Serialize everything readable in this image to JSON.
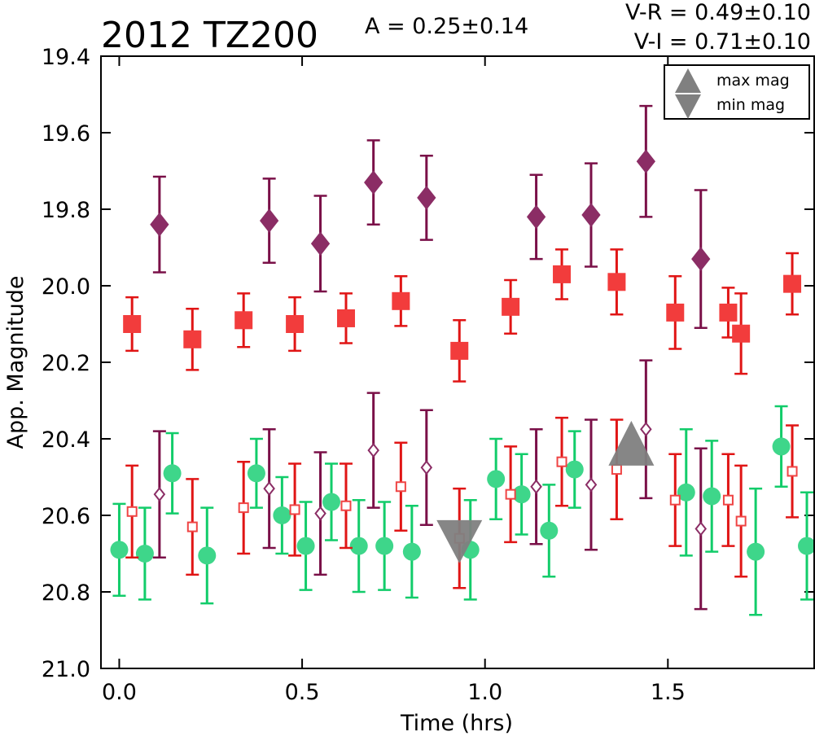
{
  "chart_data": {
    "type": "scatter",
    "title": "2012 TZ200",
    "amplitude_label": "A  = 0.25±0.14",
    "colors_label_1": "V-R = 0.49±0.10",
    "colors_label_2": "V-I  = 0.71±0.10",
    "xlabel": "Time (hrs)",
    "ylabel": "App. Magnitude",
    "xlim": [
      -0.05,
      1.9
    ],
    "ylim": [
      21.0,
      19.4
    ],
    "y_inverted": true,
    "xticks": [
      "0.0",
      "0.5",
      "1.0",
      "1.5"
    ],
    "yticks": [
      "19.4",
      "19.6",
      "19.8",
      "20.0",
      "20.2",
      "20.4",
      "20.6",
      "20.8",
      "21.0"
    ],
    "xtick_values": [
      0.0,
      0.5,
      1.0,
      1.5
    ],
    "ytick_values": [
      19.4,
      19.6,
      19.8,
      20.0,
      20.2,
      20.4,
      20.6,
      20.8,
      21.0
    ],
    "grid": false,
    "legend_position": "top-right",
    "legend": [
      {
        "label": "max mag",
        "marker": "triangle-up",
        "color": "#808080"
      },
      {
        "label": "min mag",
        "marker": "triangle-down",
        "color": "#808080"
      }
    ],
    "series": [
      {
        "marker": "diamond-filled",
        "color": "#8b2d65",
        "error_color": "#7a1048",
        "points": [
          {
            "x": 0.11,
            "y": 19.84,
            "err": 0.125
          },
          {
            "x": 0.41,
            "y": 19.83,
            "err": 0.11
          },
          {
            "x": 0.55,
            "y": 19.89,
            "err": 0.125
          },
          {
            "x": 0.695,
            "y": 19.73,
            "err": 0.11
          },
          {
            "x": 0.84,
            "y": 19.77,
            "err": 0.11
          },
          {
            "x": 1.14,
            "y": 19.82,
            "err": 0.11
          },
          {
            "x": 1.29,
            "y": 19.815,
            "err": 0.135
          },
          {
            "x": 1.44,
            "y": 19.675,
            "err": 0.145
          },
          {
            "x": 1.59,
            "y": 19.93,
            "err": 0.18
          }
        ]
      },
      {
        "marker": "square-filled",
        "color": "#f23c3c",
        "error_color": "#e01515",
        "points": [
          {
            "x": 0.035,
            "y": 20.1,
            "err": 0.07
          },
          {
            "x": 0.2,
            "y": 20.14,
            "err": 0.08
          },
          {
            "x": 0.34,
            "y": 20.09,
            "err": 0.07
          },
          {
            "x": 0.48,
            "y": 20.1,
            "err": 0.07
          },
          {
            "x": 0.62,
            "y": 20.085,
            "err": 0.065
          },
          {
            "x": 0.77,
            "y": 20.04,
            "err": 0.065
          },
          {
            "x": 0.93,
            "y": 20.17,
            "err": 0.08
          },
          {
            "x": 1.07,
            "y": 20.055,
            "err": 0.07
          },
          {
            "x": 1.21,
            "y": 19.97,
            "err": 0.065
          },
          {
            "x": 1.36,
            "y": 19.99,
            "err": 0.085
          },
          {
            "x": 1.52,
            "y": 20.07,
            "err": 0.095
          },
          {
            "x": 1.665,
            "y": 20.07,
            "err": 0.065
          },
          {
            "x": 1.7,
            "y": 20.125,
            "err": 0.105
          },
          {
            "x": 1.84,
            "y": 19.995,
            "err": 0.08
          }
        ]
      },
      {
        "marker": "circle-filled",
        "color": "#3ed68a",
        "error_color": "#12cc6a",
        "points": [
          {
            "x": 0.0,
            "y": 20.69,
            "err": 0.12
          },
          {
            "x": 0.07,
            "y": 20.7,
            "err": 0.12
          },
          {
            "x": 0.145,
            "y": 20.49,
            "err": 0.105
          },
          {
            "x": 0.24,
            "y": 20.705,
            "err": 0.125
          },
          {
            "x": 0.375,
            "y": 20.49,
            "err": 0.09
          },
          {
            "x": 0.445,
            "y": 20.6,
            "err": 0.1
          },
          {
            "x": 0.51,
            "y": 20.68,
            "err": 0.115
          },
          {
            "x": 0.58,
            "y": 20.565,
            "err": 0.1
          },
          {
            "x": 0.655,
            "y": 20.68,
            "err": 0.12
          },
          {
            "x": 0.725,
            "y": 20.68,
            "err": 0.115
          },
          {
            "x": 0.8,
            "y": 20.695,
            "err": 0.12
          },
          {
            "x": 0.96,
            "y": 20.69,
            "err": 0.13
          },
          {
            "x": 1.03,
            "y": 20.505,
            "err": 0.105
          },
          {
            "x": 1.1,
            "y": 20.545,
            "err": 0.105
          },
          {
            "x": 1.175,
            "y": 20.64,
            "err": 0.12
          },
          {
            "x": 1.245,
            "y": 20.48,
            "err": 0.1
          },
          {
            "x": 1.55,
            "y": 20.54,
            "err": 0.165
          },
          {
            "x": 1.62,
            "y": 20.55,
            "err": 0.145
          },
          {
            "x": 1.74,
            "y": 20.695,
            "err": 0.165
          },
          {
            "x": 1.81,
            "y": 20.42,
            "err": 0.105
          },
          {
            "x": 1.88,
            "y": 20.68,
            "err": 0.14
          }
        ]
      },
      {
        "marker": "square-open",
        "color": "#ef4444",
        "error_color": "#e01515",
        "points": [
          {
            "x": 0.035,
            "y": 20.59,
            "err": 0.12
          },
          {
            "x": 0.2,
            "y": 20.63,
            "err": 0.125
          },
          {
            "x": 0.34,
            "y": 20.58,
            "err": 0.12
          },
          {
            "x": 0.48,
            "y": 20.585,
            "err": 0.12
          },
          {
            "x": 0.62,
            "y": 20.575,
            "err": 0.11
          },
          {
            "x": 0.77,
            "y": 20.525,
            "err": 0.115
          },
          {
            "x": 0.93,
            "y": 20.66,
            "err": 0.13
          },
          {
            "x": 1.07,
            "y": 20.545,
            "err": 0.125
          },
          {
            "x": 1.21,
            "y": 20.46,
            "err": 0.115
          },
          {
            "x": 1.36,
            "y": 20.48,
            "err": 0.13
          },
          {
            "x": 1.52,
            "y": 20.56,
            "err": 0.12
          },
          {
            "x": 1.665,
            "y": 20.56,
            "err": 0.12
          },
          {
            "x": 1.7,
            "y": 20.615,
            "err": 0.145
          },
          {
            "x": 1.84,
            "y": 20.485,
            "err": 0.12
          }
        ]
      },
      {
        "marker": "diamond-open",
        "color": "#8b2d65",
        "error_color": "#7a1048",
        "points": [
          {
            "x": 0.11,
            "y": 20.545,
            "err": 0.165
          },
          {
            "x": 0.41,
            "y": 20.53,
            "err": 0.155
          },
          {
            "x": 0.55,
            "y": 20.595,
            "err": 0.16
          },
          {
            "x": 0.695,
            "y": 20.43,
            "err": 0.15
          },
          {
            "x": 0.84,
            "y": 20.475,
            "err": 0.15
          },
          {
            "x": 1.14,
            "y": 20.525,
            "err": 0.15
          },
          {
            "x": 1.29,
            "y": 20.52,
            "err": 0.17
          },
          {
            "x": 1.44,
            "y": 20.375,
            "err": 0.18
          },
          {
            "x": 1.59,
            "y": 20.635,
            "err": 0.21
          }
        ]
      }
    ],
    "extrema": [
      {
        "type": "max",
        "x": 1.4,
        "y": 20.47,
        "marker": "triangle-up",
        "color": "#808080"
      },
      {
        "type": "min",
        "x": 0.93,
        "y": 20.67,
        "marker": "triangle-down",
        "color": "#808080"
      }
    ]
  }
}
